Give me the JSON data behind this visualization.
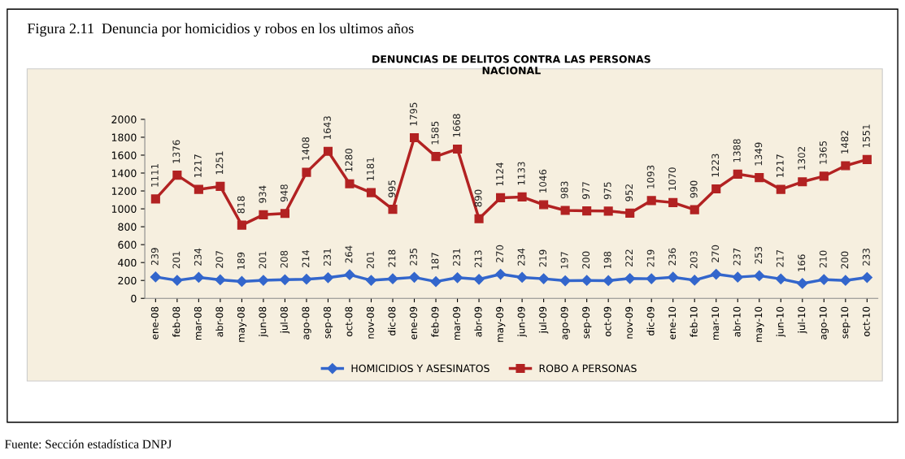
{
  "chart_data": {
    "type": "line",
    "title": "DENUNCIAS DE DELITOS CONTRA LAS PERSONAS\nNACIONAL",
    "annotations": [
      "Figura 2.11  Denuncia por homicidios y robos en los ultimos años",
      "Fuente: Sección estadística DNPJ"
    ],
    "categories": [
      "ene-08",
      "feb-08",
      "mar-08",
      "abr-08",
      "may-08",
      "jun-08",
      "jul-08",
      "ago-08",
      "sep-08",
      "oct-08",
      "nov-08",
      "dic-08",
      "ene-09",
      "feb-09",
      "mar-09",
      "abr-09",
      "may-09",
      "jun-09",
      "jul-09",
      "ago-09",
      "sep-09",
      "oct-09",
      "nov-09",
      "dic-09",
      "ene-10",
      "feb-10",
      "mar-10",
      "abr-10",
      "may-10",
      "jun-10",
      "jul-10",
      "ago-10",
      "sep-10",
      "oct-10"
    ],
    "series": [
      {
        "name": "HOMICIDIOS Y ASESINATOS",
        "color": "#3366cc",
        "marker": "diamond",
        "values": [
          239,
          201,
          234,
          207,
          189,
          201,
          208,
          214,
          231,
          264,
          201,
          218,
          235,
          187,
          231,
          213,
          270,
          234,
          219,
          197,
          200,
          198,
          222,
          219,
          236,
          203,
          270,
          237,
          253,
          217,
          166,
          210,
          200,
          233
        ]
      },
      {
        "name": "ROBO A PERSONAS",
        "color": "#b22222",
        "marker": "square",
        "values": [
          1111,
          1376,
          1217,
          1251,
          818,
          934,
          948,
          1408,
          1643,
          1280,
          1181,
          995,
          1795,
          1585,
          1668,
          890,
          1124,
          1133,
          1046,
          983,
          977,
          975,
          952,
          1093,
          1070,
          990,
          1223,
          1388,
          1349,
          1217,
          1302,
          1365,
          1482,
          1551
        ]
      }
    ],
    "ylim": [
      0,
      2000
    ],
    "yticks": [
      0,
      200,
      400,
      600,
      800,
      1000,
      1200,
      1400,
      1600,
      1800,
      2000
    ],
    "grid": false,
    "legend": "bottom",
    "data_labels": true,
    "line_style": "solid"
  }
}
